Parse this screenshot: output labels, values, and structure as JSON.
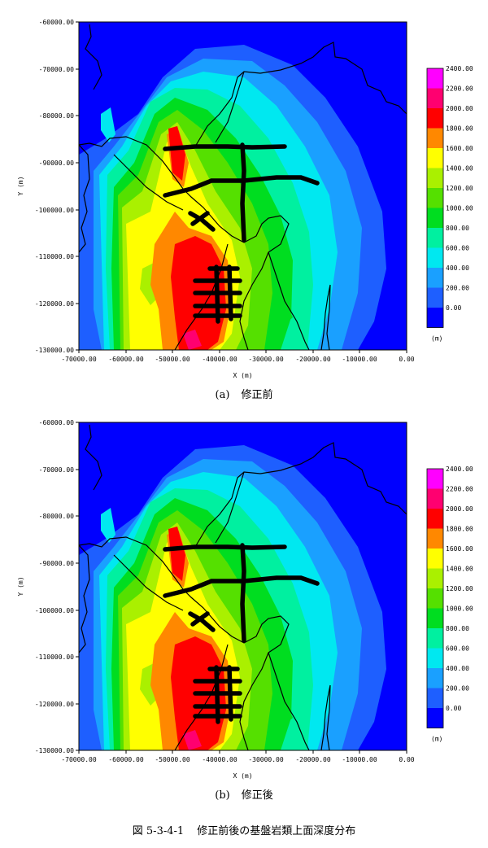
{
  "panels": [
    {
      "id": "(a)",
      "caption": "修正前",
      "xlabel": "X (m)",
      "ylabel": "Y (m)",
      "x_ticks": [
        "-70000.00",
        "-60000.00",
        "-50000.00",
        "-40000.00",
        "-30000.00",
        "-20000.00",
        "-10000.00",
        "0.00"
      ],
      "y_ticks": [
        "-60000.00",
        "-70000.00",
        "-80000.00",
        "-90000.00",
        "-100000.00",
        "-110000.00",
        "-120000.00",
        "-130000.00"
      ],
      "legend_unit": "(m)",
      "legend_labels": [
        "0.00",
        "200.00",
        "400.00",
        "600.00",
        "800.00",
        "1000.00",
        "1200.00",
        "1400.00",
        "1600.00",
        "1800.00",
        "2000.00",
        "2200.00",
        "2400.00"
      ]
    },
    {
      "id": "(b)",
      "caption": "修正後",
      "xlabel": "X (m)",
      "ylabel": "Y (m)",
      "x_ticks": [
        "-70000.00",
        "-60000.00",
        "-50000.00",
        "-40000.00",
        "-30000.00",
        "-20000.00",
        "-10000.00",
        "0.00"
      ],
      "y_ticks": [
        "-60000.00",
        "-70000.00",
        "-80000.00",
        "-90000.00",
        "-100000.00",
        "-110000.00",
        "-120000.00",
        "-130000.00"
      ],
      "legend_unit": "(m)",
      "legend_labels": [
        "0.00",
        "200.00",
        "400.00",
        "600.00",
        "800.00",
        "1000.00",
        "1200.00",
        "1400.00",
        "1600.00",
        "1800.00",
        "2000.00",
        "2200.00",
        "2400.00"
      ]
    }
  ],
  "legend_colors": [
    "#0000ff",
    "#1e5fff",
    "#1aa0ff",
    "#00e8f0",
    "#00f0a0",
    "#00dd20",
    "#55e000",
    "#aaf000",
    "#ffff00",
    "#ff8800",
    "#ff0000",
    "#ff0070",
    "#ff00ff"
  ],
  "figure_caption": {
    "number": "図 5-3-4-1",
    "title": "修正前後の基盤岩類上面深度分布"
  }
}
